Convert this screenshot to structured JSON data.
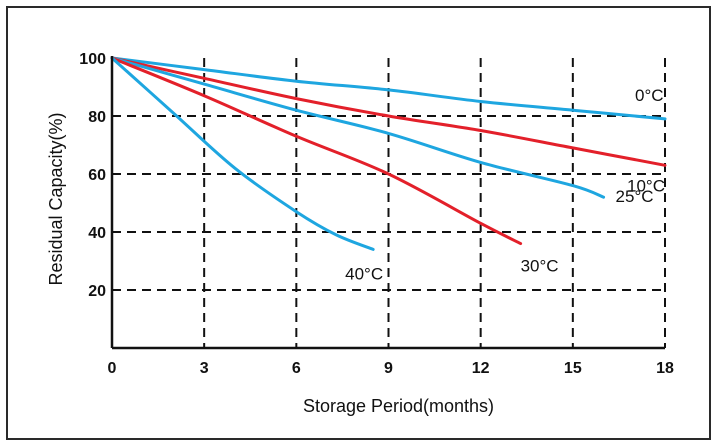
{
  "chart_data": {
    "type": "line",
    "xlabel": "Storage Period(months)",
    "ylabel": "Residual Capacity(%)",
    "xlim": [
      0,
      18
    ],
    "ylim": [
      0,
      100
    ],
    "x_ticks": [
      0,
      3,
      6,
      9,
      12,
      15,
      18
    ],
    "y_ticks": [
      20,
      40,
      60,
      80,
      100
    ],
    "grid": true,
    "colors": {
      "blue": "#1ea6e0",
      "red": "#e3202a"
    },
    "series": [
      {
        "label": "0°C",
        "color": "blue",
        "x": [
          0,
          3,
          6,
          9,
          12,
          15,
          18
        ],
        "y": [
          100,
          96,
          92,
          89,
          85,
          82,
          79
        ]
      },
      {
        "label": "10°C",
        "color": "red",
        "x": [
          0,
          3,
          6,
          9,
          12,
          15,
          18
        ],
        "y": [
          100,
          93,
          86,
          80,
          75,
          69,
          63
        ]
      },
      {
        "label": "25°C",
        "color": "blue",
        "x": [
          0,
          3,
          6,
          9,
          12,
          15,
          16
        ],
        "y": [
          100,
          91,
          82,
          74,
          64,
          56,
          52
        ]
      },
      {
        "label": "30°C",
        "color": "red",
        "x": [
          0,
          3,
          6,
          9,
          12,
          13.3
        ],
        "y": [
          100,
          87,
          73,
          60,
          43,
          36
        ]
      },
      {
        "label": "40°C",
        "color": "blue",
        "x": [
          0,
          2,
          4,
          6,
          7.3,
          8.5
        ],
        "y": [
          100,
          81,
          62,
          47,
          39,
          34
        ]
      }
    ]
  }
}
